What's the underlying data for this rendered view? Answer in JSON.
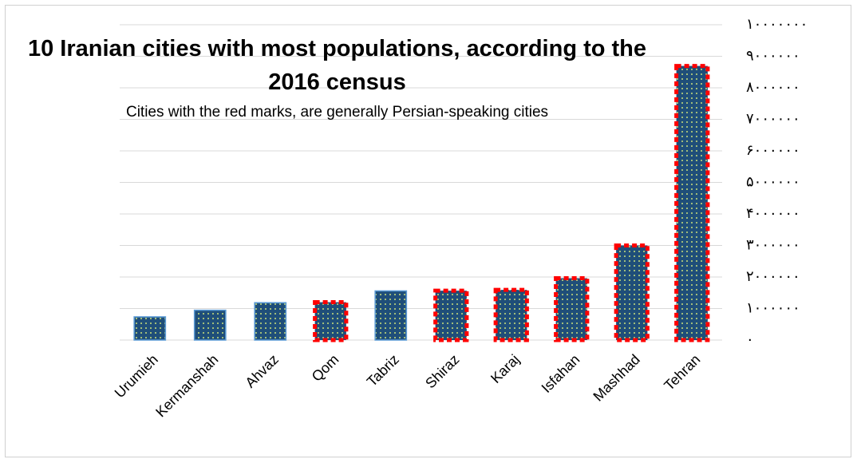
{
  "chart_data": {
    "type": "bar",
    "title": "10 Iranian cities with most populations, according to the 2016 census",
    "subtitle": "Cities with the red marks, are generally Persian-speaking cities",
    "categories": [
      "Urumieh",
      "Kermanshah",
      "Ahvaz",
      "Qom",
      "Tabriz",
      "Shiraz",
      "Karaj",
      "Isfahan",
      "Mashhad",
      "Tehran"
    ],
    "values": [
      736224,
      946651,
      1184788,
      1201158,
      1558693,
      1565572,
      1592492,
      1961260,
      3001184,
      8693706
    ],
    "highlighted": [
      false,
      false,
      false,
      true,
      false,
      true,
      true,
      true,
      true,
      true
    ],
    "color": "#1f4e79",
    "highlight_color": "#ff0000",
    "ylim": [
      0,
      10000000
    ],
    "yticks": [
      {
        "value": 0,
        "label": "۰"
      },
      {
        "value": 1000000,
        "label": "۱۰۰۰۰۰۰"
      },
      {
        "value": 2000000,
        "label": "۲۰۰۰۰۰۰"
      },
      {
        "value": 3000000,
        "label": "۳۰۰۰۰۰۰"
      },
      {
        "value": 4000000,
        "label": "۴۰۰۰۰۰۰"
      },
      {
        "value": 5000000,
        "label": "۵۰۰۰۰۰۰"
      },
      {
        "value": 6000000,
        "label": "۶۰۰۰۰۰۰"
      },
      {
        "value": 7000000,
        "label": "۷۰۰۰۰۰۰"
      },
      {
        "value": 8000000,
        "label": "۸۰۰۰۰۰۰"
      },
      {
        "value": 9000000,
        "label": "۹۰۰۰۰۰۰"
      },
      {
        "value": 10000000,
        "label": "۱۰۰۰۰۰۰۰"
      }
    ],
    "yaxis_side": "right",
    "grid": true
  }
}
